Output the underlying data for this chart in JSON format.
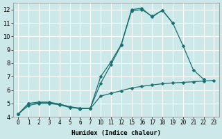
{
  "xlabel": "Humidex (Indice chaleur)",
  "bg_color": "#cce8e8",
  "grid_color": "#ffffff",
  "line_color": "#1a7070",
  "ylim": [
    4.0,
    12.5
  ],
  "yticks": [
    4,
    5,
    6,
    7,
    8,
    9,
    10,
    11,
    12
  ],
  "xlabels": [
    "0",
    "1",
    "2",
    "3",
    "4",
    "5",
    "6",
    "7",
    "10",
    "11",
    "12",
    "15",
    "16",
    "17",
    "18",
    "19",
    "20",
    "21",
    "22",
    "23"
  ],
  "series": [
    {
      "xi": [
        0,
        1,
        2,
        3,
        4,
        5,
        6,
        7,
        8,
        9,
        10,
        11,
        12,
        13,
        14,
        15,
        16,
        17,
        18
      ],
      "y": [
        4.2,
        5.0,
        5.1,
        5.1,
        4.95,
        4.75,
        4.6,
        4.65,
        7.0,
        8.1,
        9.4,
        12.0,
        12.1,
        11.45,
        11.95,
        11.0,
        9.3,
        7.5,
        6.8
      ]
    },
    {
      "xi": [
        0,
        1,
        2,
        3,
        4,
        5,
        6,
        7,
        8,
        9,
        10,
        11,
        12,
        13,
        14,
        15
      ],
      "y": [
        4.2,
        5.0,
        5.05,
        5.05,
        4.95,
        4.75,
        4.65,
        4.65,
        6.5,
        7.9,
        9.35,
        11.9,
        12.0,
        11.5,
        11.95,
        11.0
      ]
    },
    {
      "xi": [
        0,
        1,
        2,
        3,
        4,
        5,
        6,
        7,
        8,
        9,
        10,
        11,
        12,
        13,
        14,
        15,
        16,
        17,
        18,
        19
      ],
      "y": [
        4.2,
        4.85,
        5.0,
        5.0,
        4.9,
        4.7,
        4.62,
        4.62,
        5.55,
        5.75,
        5.95,
        6.15,
        6.28,
        6.38,
        6.47,
        6.53,
        6.57,
        6.62,
        6.67,
        6.72
      ]
    }
  ]
}
